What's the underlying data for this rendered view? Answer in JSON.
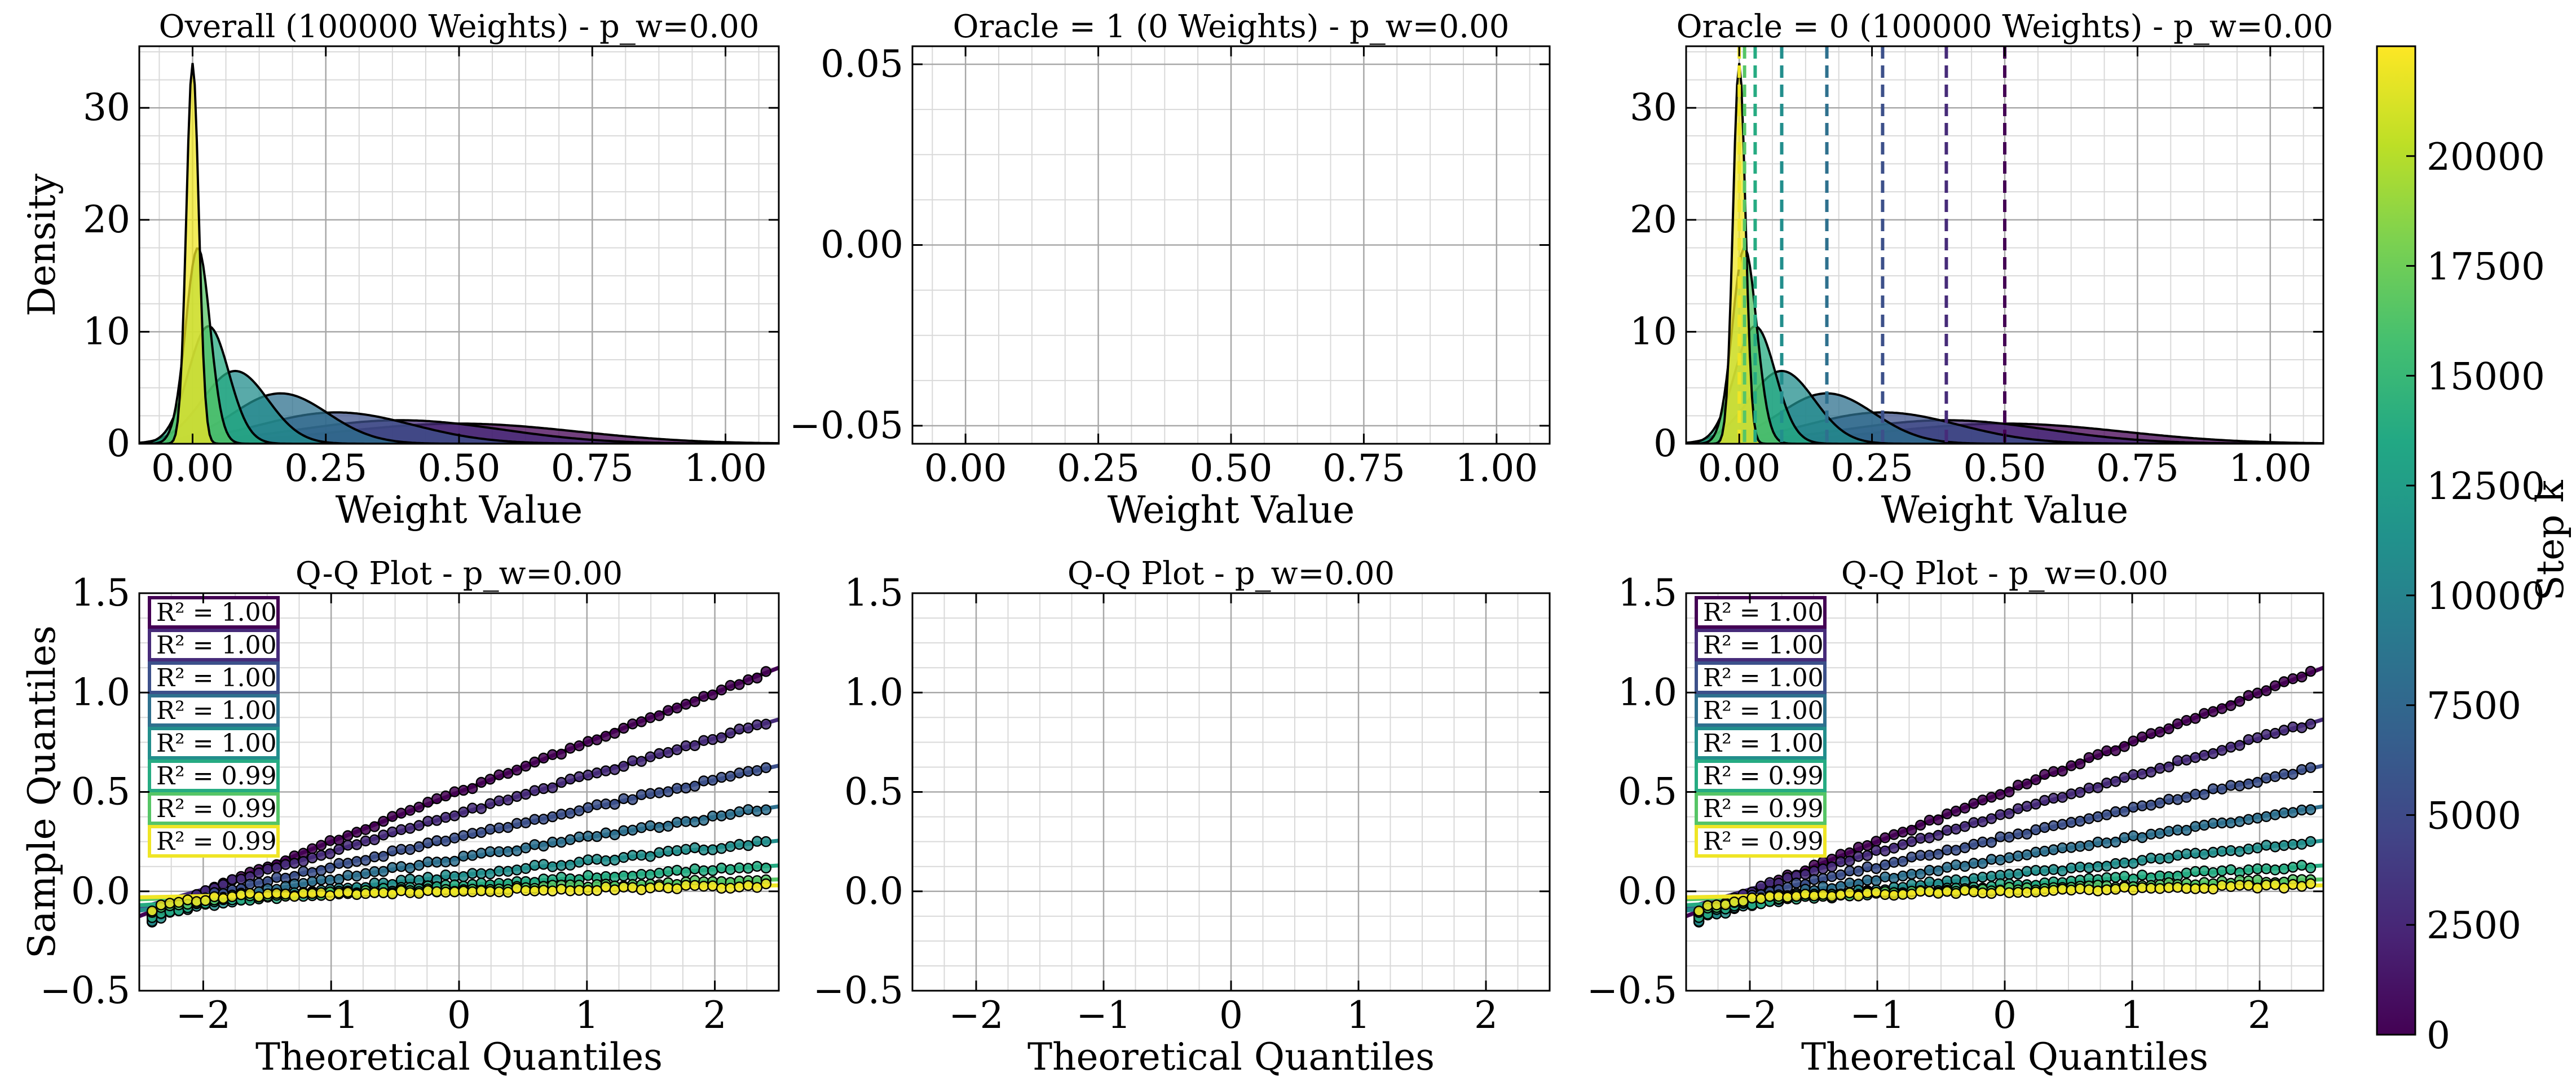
{
  "colorbar": {
    "label": "Step k",
    "min": 0,
    "max": 22500,
    "ticks": [
      0,
      2500,
      5000,
      7500,
      10000,
      12500,
      15000,
      17500,
      20000
    ],
    "tick_labels": [
      "0",
      "2500",
      "5000",
      "7500",
      "10000",
      "12500",
      "15000",
      "17500",
      "20000"
    ]
  },
  "chart_data": [
    {
      "type": "area",
      "title": "Overall (100000 Weights) - p_w=0.00",
      "xlabel": "Weight Value",
      "ylabel": "Density",
      "xlim": [
        -0.1,
        1.1
      ],
      "ylim": [
        0,
        35.5
      ],
      "xticks": [
        0.0,
        0.25,
        0.5,
        0.75,
        1.0
      ],
      "xtick_labels": [
        "0.00",
        "0.25",
        "0.50",
        "0.75",
        "1.00"
      ],
      "yticks": [
        0,
        10,
        20,
        30
      ],
      "ytick_labels": [
        "0",
        "10",
        "20",
        "30"
      ],
      "grid": true,
      "series": [
        {
          "step": 0,
          "mean": 0.5,
          "peak": 1.8
        },
        {
          "step": 2750,
          "mean": 0.39,
          "peak": 2.1
        },
        {
          "step": 5500,
          "mean": 0.27,
          "peak": 2.8
        },
        {
          "step": 8250,
          "mean": 0.165,
          "peak": 4.5
        },
        {
          "step": 11000,
          "mean": 0.08,
          "peak": 6.5
        },
        {
          "step": 13750,
          "mean": 0.03,
          "peak": 10.5
        },
        {
          "step": 16500,
          "mean": 0.01,
          "peak": 17.5
        },
        {
          "step": 22000,
          "mean": 0.0,
          "peak": 34.0
        }
      ]
    },
    {
      "type": "area",
      "title": "Oracle = 1 (0 Weights) - p_w=0.00",
      "xlabel": "Weight Value",
      "ylabel": "",
      "xlim": [
        -0.1,
        1.1
      ],
      "ylim": [
        -0.055,
        0.055
      ],
      "xticks": [
        0.0,
        0.25,
        0.5,
        0.75,
        1.0
      ],
      "xtick_labels": [
        "0.00",
        "0.25",
        "0.50",
        "0.75",
        "1.00"
      ],
      "yticks": [
        -0.05,
        0.0,
        0.05
      ],
      "ytick_labels": [
        "−0.05",
        "0.00",
        "0.05"
      ],
      "grid": true,
      "series": []
    },
    {
      "type": "area",
      "title": "Oracle = 0 (100000 Weights) - p_w=0.00",
      "xlabel": "Weight Value",
      "ylabel": "",
      "xlim": [
        -0.1,
        1.1
      ],
      "ylim": [
        0,
        35.5
      ],
      "xticks": [
        0.0,
        0.25,
        0.5,
        0.75,
        1.0
      ],
      "xtick_labels": [
        "0.00",
        "0.25",
        "0.50",
        "0.75",
        "1.00"
      ],
      "yticks": [
        0,
        10,
        20,
        30
      ],
      "ytick_labels": [
        "0",
        "10",
        "20",
        "30"
      ],
      "grid": true,
      "mean_lines": [
        0.5,
        0.39,
        0.27,
        0.165,
        0.08,
        0.03,
        0.01,
        0.0
      ],
      "series": [
        {
          "step": 0,
          "mean": 0.5,
          "peak": 1.8
        },
        {
          "step": 2750,
          "mean": 0.39,
          "peak": 2.1
        },
        {
          "step": 5500,
          "mean": 0.27,
          "peak": 2.8
        },
        {
          "step": 8250,
          "mean": 0.165,
          "peak": 4.5
        },
        {
          "step": 11000,
          "mean": 0.08,
          "peak": 6.5
        },
        {
          "step": 13750,
          "mean": 0.03,
          "peak": 10.5
        },
        {
          "step": 16500,
          "mean": 0.01,
          "peak": 17.5
        },
        {
          "step": 22000,
          "mean": 0.0,
          "peak": 34.0
        }
      ]
    },
    {
      "type": "scatter",
      "title": "Q-Q Plot - p_w=0.00",
      "xlabel": "Theoretical Quantiles",
      "ylabel": "Sample Quantiles",
      "xlim": [
        -2.5,
        2.5
      ],
      "ylim": [
        -0.5,
        1.5
      ],
      "xticks": [
        -2,
        -1,
        0,
        1,
        2
      ],
      "xtick_labels": [
        "−2",
        "−1",
        "0",
        "1",
        "2"
      ],
      "yticks": [
        -0.5,
        0.0,
        0.5,
        1.0,
        1.5
      ],
      "ytick_labels": [
        "−0.5",
        "0.0",
        "0.5",
        "1.0",
        "1.5"
      ],
      "grid": true,
      "series": [
        {
          "step": 0,
          "intercept": 0.5,
          "slope": 0.25,
          "r2": "R² = 1.00"
        },
        {
          "step": 2750,
          "intercept": 0.39,
          "slope": 0.19,
          "r2": "R² = 1.00"
        },
        {
          "step": 5500,
          "intercept": 0.27,
          "slope": 0.145,
          "r2": "R² = 1.00"
        },
        {
          "step": 8250,
          "intercept": 0.165,
          "slope": 0.105,
          "r2": "R² = 1.00"
        },
        {
          "step": 11000,
          "intercept": 0.08,
          "slope": 0.07,
          "r2": "R² = 1.00"
        },
        {
          "step": 13750,
          "intercept": 0.03,
          "slope": 0.04,
          "r2": "R² = 0.99"
        },
        {
          "step": 16500,
          "intercept": 0.01,
          "slope": 0.02,
          "r2": "R² = 0.99"
        },
        {
          "step": 22000,
          "intercept": 0.0,
          "slope": 0.012,
          "r2": "R² = 0.99"
        }
      ]
    },
    {
      "type": "scatter",
      "title": "Q-Q Plot - p_w=0.00",
      "xlabel": "Theoretical Quantiles",
      "ylabel": "",
      "xlim": [
        -2.5,
        2.5
      ],
      "ylim": [
        -0.5,
        1.5
      ],
      "xticks": [
        -2,
        -1,
        0,
        1,
        2
      ],
      "xtick_labels": [
        "−2",
        "−1",
        "0",
        "1",
        "2"
      ],
      "yticks": [
        -0.5,
        0.0,
        0.5,
        1.0,
        1.5
      ],
      "ytick_labels": [
        "−0.5",
        "0.0",
        "0.5",
        "1.0",
        "1.5"
      ],
      "grid": true,
      "series": []
    },
    {
      "type": "scatter",
      "title": "Q-Q Plot - p_w=0.00",
      "xlabel": "Theoretical Quantiles",
      "ylabel": "",
      "xlim": [
        -2.5,
        2.5
      ],
      "ylim": [
        -0.5,
        1.5
      ],
      "xticks": [
        -2,
        -1,
        0,
        1,
        2
      ],
      "xtick_labels": [
        "−2",
        "−1",
        "0",
        "1",
        "2"
      ],
      "yticks": [
        -0.5,
        0.0,
        0.5,
        1.0,
        1.5
      ],
      "ytick_labels": [
        "−0.5",
        "0.0",
        "0.5",
        "1.0",
        "1.5"
      ],
      "grid": true,
      "series": [
        {
          "step": 0,
          "intercept": 0.5,
          "slope": 0.25,
          "r2": "R² = 1.00"
        },
        {
          "step": 2750,
          "intercept": 0.39,
          "slope": 0.19,
          "r2": "R² = 1.00"
        },
        {
          "step": 5500,
          "intercept": 0.27,
          "slope": 0.145,
          "r2": "R² = 1.00"
        },
        {
          "step": 8250,
          "intercept": 0.165,
          "slope": 0.105,
          "r2": "R² = 1.00"
        },
        {
          "step": 11000,
          "intercept": 0.08,
          "slope": 0.07,
          "r2": "R² = 1.00"
        },
        {
          "step": 13750,
          "intercept": 0.03,
          "slope": 0.04,
          "r2": "R² = 0.99"
        },
        {
          "step": 16500,
          "intercept": 0.01,
          "slope": 0.02,
          "r2": "R² = 0.99"
        },
        {
          "step": 22000,
          "intercept": 0.0,
          "slope": 0.012,
          "r2": "R² = 0.99"
        }
      ]
    }
  ]
}
